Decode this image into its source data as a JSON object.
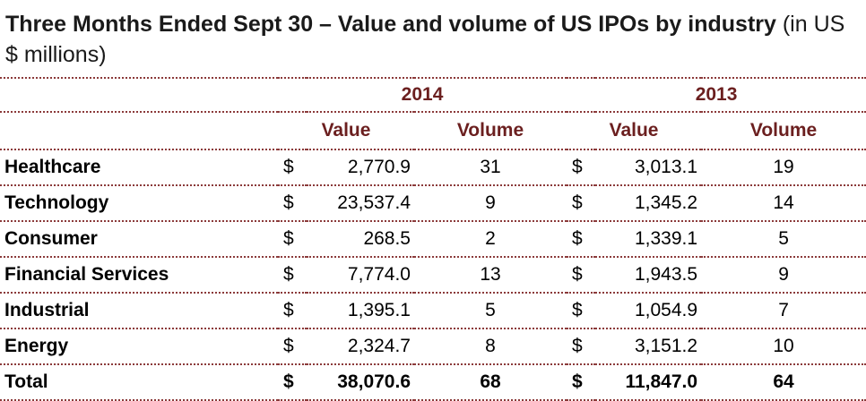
{
  "title": {
    "main": "Three Months Ended Sept 30 – Value and volume of US IPOs by industry",
    "unit": "(in US $ millions)"
  },
  "years": [
    "2014",
    "2013"
  ],
  "columns": {
    "value": "Value",
    "volume": "Volume"
  },
  "currency_symbol": "$",
  "rows": [
    {
      "industry": "Healthcare",
      "v2014": "2,770.9",
      "n2014": "31",
      "v2013": "3,013.1",
      "n2013": "19"
    },
    {
      "industry": "Technology",
      "v2014": "23,537.4",
      "n2014": "9",
      "v2013": "1,345.2",
      "n2013": "14"
    },
    {
      "industry": "Consumer",
      "v2014": "268.5",
      "n2014": "2",
      "v2013": "1,339.1",
      "n2013": "5"
    },
    {
      "industry": "Financial Services",
      "v2014": "7,774.0",
      "n2014": "13",
      "v2013": "1,943.5",
      "n2013": "9"
    },
    {
      "industry": "Industrial",
      "v2014": "1,395.1",
      "n2014": "5",
      "v2013": "1,054.9",
      "n2013": "7"
    },
    {
      "industry": "Energy",
      "v2014": "2,324.7",
      "n2014": "8",
      "v2013": "3,151.2",
      "n2013": "10"
    }
  ],
  "total": {
    "industry": "Total",
    "v2014": "38,070.6",
    "n2014": "68",
    "v2013": "11,847.0",
    "n2013": "64"
  },
  "colors": {
    "header_text": "#6b1f1f",
    "rule": "#8b3a3a"
  }
}
